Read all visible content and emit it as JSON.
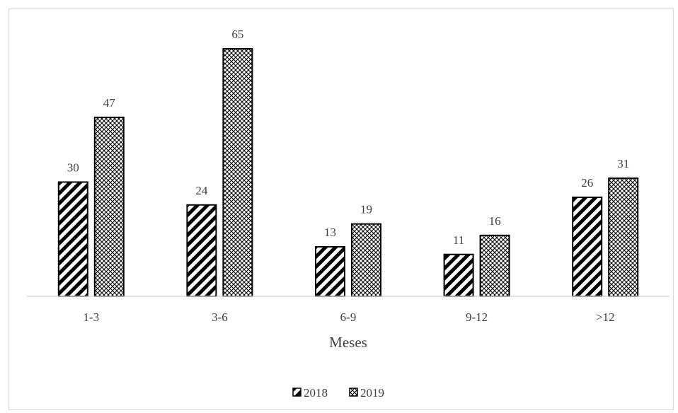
{
  "chart_data": {
    "type": "bar",
    "categories": [
      "1-3",
      "3-6",
      "6-9",
      "9-12",
      ">12"
    ],
    "series": [
      {
        "name": "2018",
        "values": [
          30,
          24,
          13,
          11,
          26
        ],
        "pattern": "diagonal-stripes",
        "color": "#000000"
      },
      {
        "name": "2019",
        "values": [
          47,
          65,
          19,
          16,
          31
        ],
        "pattern": "crosshatch",
        "color": "#000000"
      }
    ],
    "title": "",
    "xlabel": "Meses",
    "ylabel": "",
    "ylim": [
      0,
      65
    ],
    "grid": false,
    "legend_position": "bottom",
    "data_labels": true,
    "axis_color": "#d9d9d9",
    "text_color": "#404040"
  }
}
